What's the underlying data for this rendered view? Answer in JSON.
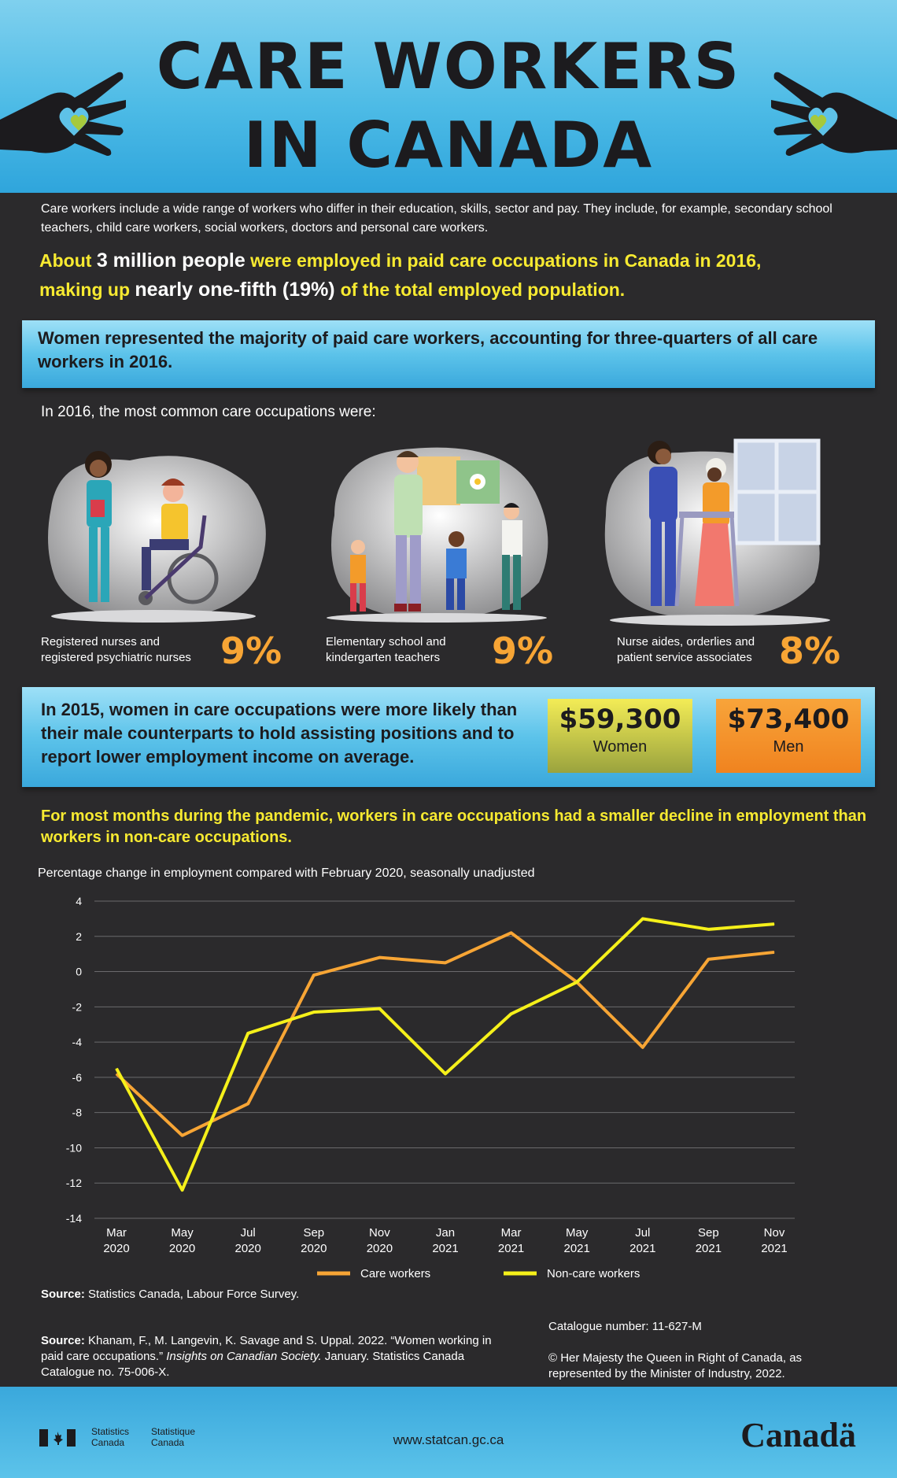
{
  "header": {
    "title_line1": "CARE WORKERS",
    "title_line2": "IN CANADA"
  },
  "intro": "Care workers include a wide range of workers who differ in their education, skills, sector and pay. They include, for example, secondary school teachers, child care workers, social workers, doctors and personal care workers.",
  "highlight": {
    "p1": "About ",
    "p2": "3 million people",
    "p3": " were employed in paid care occupations in Canada in 2016,",
    "p4": "making up ",
    "p5": "nearly one-fifth",
    "p6": " (19%) ",
    "p7": "of the total employed population."
  },
  "women_majority": "Women represented the majority of paid care workers, accounting for three-quarters of all care workers in 2016.",
  "common_heading": "In 2016, the most common care occupations were:",
  "occupations": [
    {
      "line1": "Registered nurses and",
      "line2": "registered psychiatric nurses",
      "pct": "9%"
    },
    {
      "line1": "Elementary school and",
      "line2": "kindergarten teachers",
      "pct": "9%"
    },
    {
      "line1": "Nurse aides, orderlies and",
      "line2": "patient service associates",
      "pct": "8%"
    }
  ],
  "income": {
    "text": "In 2015, women in care occupations were more likely than their male counterparts to hold assisting positions and to report lower employment income on average.",
    "women_amount": "$59,300",
    "women_label": "Women",
    "men_amount": "$73,400",
    "men_label": "Men"
  },
  "chart_heading": "For most months during the pandemic, workers in care occupations had a smaller decline in employment than workers in non-care occupations.",
  "chart_subtitle": "Percentage change in employment compared with February 2020, seasonally unadjusted",
  "chart_data": {
    "type": "line",
    "categories": [
      [
        "Mar",
        "2020"
      ],
      [
        "May",
        "2020"
      ],
      [
        "Jul",
        "2020"
      ],
      [
        "Sep",
        "2020"
      ],
      [
        "Nov",
        "2020"
      ],
      [
        "Jan",
        "2021"
      ],
      [
        "Mar",
        "2021"
      ],
      [
        "May",
        "2021"
      ],
      [
        "Jul",
        "2021"
      ],
      [
        "Sep",
        "2021"
      ],
      [
        "Nov",
        "2021"
      ]
    ],
    "ylim": [
      -14,
      4
    ],
    "yticks": [
      4,
      2,
      0,
      -2,
      -4,
      -6,
      -8,
      -10,
      -12,
      -14
    ],
    "grid": true,
    "legend_position": "bottom",
    "series": [
      {
        "name": "Care workers",
        "color": "#f7a535",
        "values": [
          -5.8,
          -9.3,
          -7.5,
          -0.2,
          0.8,
          0.5,
          2.2,
          -0.6,
          -4.3,
          0.7,
          1.1
        ]
      },
      {
        "name": "Non-care workers",
        "color": "#f5f01a",
        "values": [
          -5.5,
          -12.4,
          -3.5,
          -2.3,
          -2.1,
          -5.8,
          -2.4,
          -0.6,
          3.0,
          2.4,
          2.7
        ]
      }
    ]
  },
  "source1": {
    "label": "Source:",
    "text": " Statistics Canada, Labour Force Survey."
  },
  "source2": {
    "label": "Source:",
    "text": " Khanam, F.,  M. Langevin, K. Savage and S. Uppal. 2022. “Women working in paid care occupations.” ",
    "italic": "Insights on Canadian Society.",
    "text2": " January. Statistics Canada Catalogue no. 75-006-X."
  },
  "catalogue": "Catalogue number: 11-627-M",
  "copyright": "© Her Majesty the Queen in Right of Canada, as represented by the Minister of Industry, 2022.",
  "footer": {
    "sc_en1": "Statistics",
    "sc_en2": "Canada",
    "sc_fr1": "Statistique",
    "sc_fr2": "Canada",
    "url": "www.statcan.gc.ca",
    "wordmark": "Canadä"
  }
}
